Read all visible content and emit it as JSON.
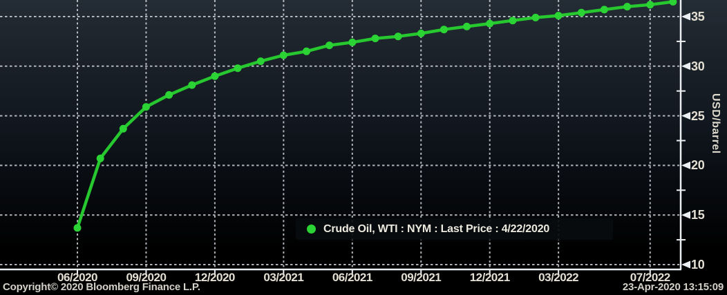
{
  "chart_data": {
    "type": "line",
    "series": [
      {
        "name": "Crude Oil, WTI : NYM : Last Price : 4/22/2020",
        "color": "#26c72f",
        "marker_color": "#2bd334",
        "categories": [
          "06/2020",
          "07/2020",
          "08/2020",
          "09/2020",
          "10/2020",
          "11/2020",
          "12/2020",
          "01/2021",
          "02/2021",
          "03/2021",
          "04/2021",
          "05/2021",
          "06/2021",
          "07/2021",
          "08/2021",
          "09/2021",
          "10/2021",
          "11/2021",
          "12/2021",
          "01/2022",
          "02/2022",
          "03/2022",
          "04/2022",
          "05/2022",
          "06/2022",
          "07/2022",
          "08/2022"
        ],
        "values": [
          13.7,
          20.7,
          23.7,
          25.9,
          27.1,
          28.1,
          29.0,
          29.8,
          30.5,
          31.1,
          31.5,
          32.1,
          32.4,
          32.8,
          33.0,
          33.3,
          33.7,
          34.0,
          34.3,
          34.6,
          34.9,
          35.1,
          35.4,
          35.7,
          36.0,
          36.2,
          36.5
        ]
      }
    ],
    "xlabel": "",
    "ylabel": "USD/barrel",
    "ylim": [
      9.7,
      36.7
    ],
    "y_ticks": [
      10,
      15,
      20,
      25,
      30,
      35
    ],
    "y_minor_ticks": [
      12.5,
      17.5,
      22.5,
      27.5,
      32.5
    ],
    "x_ticks": [
      {
        "index": 0,
        "label": "06/2020"
      },
      {
        "index": 3,
        "label": "09/2020"
      },
      {
        "index": 6,
        "label": "12/2020"
      },
      {
        "index": 9,
        "label": "03/2021"
      },
      {
        "index": 12,
        "label": "06/2021"
      },
      {
        "index": 15,
        "label": "09/2021"
      },
      {
        "index": 18,
        "label": "12/2021"
      },
      {
        "index": 21,
        "label": "03/2022"
      },
      {
        "index": 25,
        "label": "07/2022"
      }
    ],
    "grid": "dotted",
    "legend_position": "inside-bottom-center"
  },
  "legend": {
    "label": "Crude Oil, WTI : NYM : Last Price : 4/22/2020"
  },
  "footer": {
    "copyright": "Copyright© 2020 Bloomberg Finance L.P.",
    "timestamp": "23-Apr-2020 13:15:09"
  },
  "colors": {
    "line_green": "#26c72f",
    "marker_green": "#2bd334",
    "grid": "#cdd2d8",
    "axis": "#eceff2",
    "label_text": "#e4dfd3",
    "background_top": "#242c35",
    "background_bottom": "#000000",
    "legend_background": "#0a0d10"
  }
}
